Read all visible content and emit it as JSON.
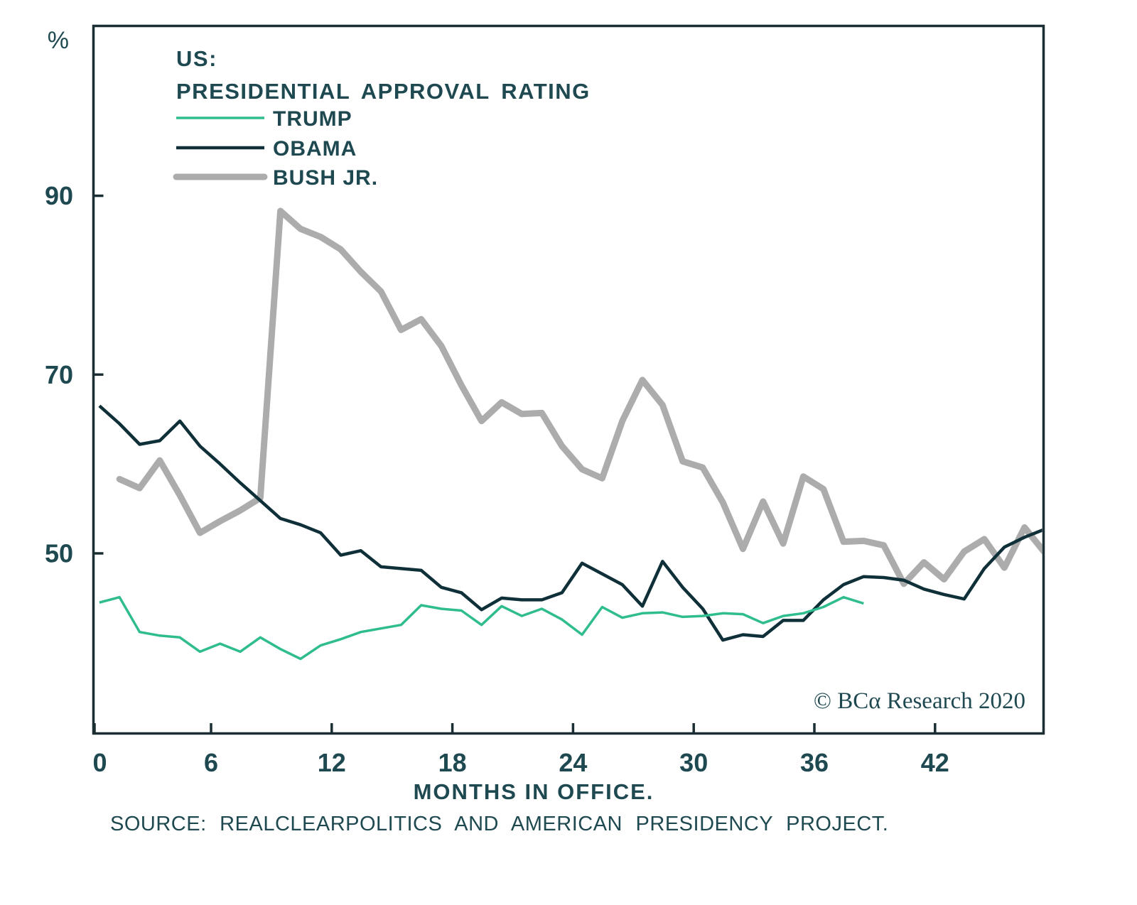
{
  "chart": {
    "y_unit": "%",
    "title_line1": "US:",
    "title_line2": "PRESIDENTIAL APPROVAL RATING",
    "xlabel": "MONTHS IN OFFICE.",
    "source": "SOURCE: REALCLEARPOLITICS AND AMERICAN PRESIDENCY PROJECT.",
    "copyright": "© BCα Research 2020",
    "y_ticks": [
      90,
      70,
      50
    ],
    "x_ticks": [
      0,
      6,
      12,
      18,
      24,
      30,
      36,
      42
    ],
    "text_color": "#1f4951",
    "axis_color": "#1a2e33"
  },
  "chart_data": {
    "type": "line",
    "title": "US: Presidential Approval Rating",
    "xlabel": "Months in office",
    "ylabel": "%",
    "x_ticks": [
      0,
      6,
      12,
      18,
      24,
      30,
      36,
      42
    ],
    "y_ticks": [
      90,
      70,
      50
    ],
    "xlim": [
      0,
      47.5
    ],
    "ylim": [
      30,
      110
    ],
    "grid": false,
    "legend_position": "top-left-inside",
    "series": [
      {
        "name": "TRUMP",
        "color": "#2fbc8e",
        "start_month": 0,
        "values": [
          44.5,
          45.1,
          41.2,
          40.8,
          40.6,
          39.0,
          39.9,
          39.0,
          40.6,
          39.3,
          38.2,
          39.7,
          40.4,
          41.2,
          41.6,
          42.0,
          44.2,
          43.8,
          43.6,
          42.0,
          44.1,
          43.0,
          43.8,
          42.6,
          40.9,
          44.0,
          42.8,
          43.3,
          43.4,
          42.9,
          43.0,
          43.3,
          43.2,
          42.2,
          43.0,
          43.3,
          44.0,
          45.1,
          44.4
        ]
      },
      {
        "name": "OBAMA",
        "color": "#0f3038",
        "start_month": 0,
        "values": [
          66.5,
          64.5,
          62.2,
          62.6,
          64.8,
          62.0,
          60.0,
          57.9,
          55.9,
          53.9,
          53.2,
          52.3,
          49.8,
          50.3,
          48.5,
          48.3,
          48.1,
          46.2,
          45.6,
          43.7,
          45.0,
          44.8,
          44.8,
          45.6,
          48.9,
          47.7,
          46.5,
          44.1,
          49.1,
          46.2,
          43.8,
          40.3,
          40.9,
          40.7,
          42.5,
          42.5,
          44.8,
          46.5,
          47.4,
          47.3,
          47.0,
          46.0,
          45.4,
          44.9,
          48.3,
          50.7,
          51.8,
          52.7
        ]
      },
      {
        "name": "BUSH JR.",
        "color": "#acacac",
        "start_month": 1,
        "values": [
          58.3,
          57.3,
          60.4,
          56.5,
          52.3,
          53.6,
          54.8,
          56.2,
          88.3,
          86.3,
          85.4,
          84.0,
          81.5,
          79.3,
          75.0,
          76.2,
          73.2,
          68.8,
          64.8,
          66.9,
          65.6,
          65.7,
          62.0,
          59.4,
          58.4,
          64.8,
          69.4,
          66.6,
          60.3,
          59.6,
          55.7,
          50.5,
          55.8,
          51.1,
          58.6,
          57.2,
          51.3,
          51.4,
          50.9,
          46.6,
          49.0,
          47.1,
          50.2,
          51.6,
          48.4,
          52.9,
          50.1
        ]
      }
    ]
  }
}
